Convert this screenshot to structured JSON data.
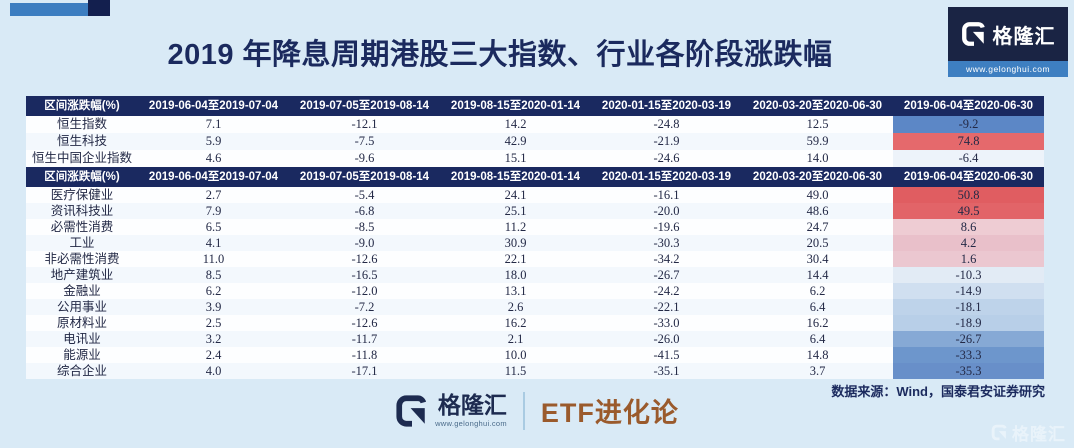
{
  "page": {
    "title": "2019 年降息周期港股三大指数、行业各阶段涨跌幅",
    "source_note": "数据来源：Wind，国泰君安证券研究"
  },
  "brand": {
    "name": "格隆汇",
    "url": "www.gelonghui.com",
    "footer_channel": "ETF进化论",
    "watermark": "格隆汇"
  },
  "colors": {
    "page_bg": "#d9eaf6",
    "header_navy": "#1a2960",
    "logo_navy": "#1a2444",
    "logo_strip_blue": "#3e7fc1",
    "title_navy": "#1b2a5e",
    "channel_brown": "#9a5a2c",
    "strong_gain_red": "#e05d61",
    "strong_loss_blue": "#5c87c6"
  },
  "chart_data": [
    {
      "type": "table",
      "name": "indices",
      "columns": [
        "区间涨跌幅(%)",
        "2019-06-04至2019-07-04",
        "2019-07-05至2019-08-14",
        "2019-08-15至2020-01-14",
        "2020-01-15至2020-03-19",
        "2020-03-20至2020-06-30",
        "2019-06-04至2020-06-30"
      ],
      "rows": [
        {
          "label": "恒生指数",
          "values": [
            "7.1",
            "-12.1",
            "14.2",
            "-24.8",
            "12.5",
            "-9.2"
          ],
          "total_bg": "#5c87c6"
        },
        {
          "label": "恒生科技",
          "values": [
            "5.9",
            "-7.5",
            "42.9",
            "-21.9",
            "59.9",
            "74.8"
          ],
          "total_bg": "#e5696c"
        },
        {
          "label": "恒生中国企业指数",
          "values": [
            "4.6",
            "-9.6",
            "15.1",
            "-24.6",
            "14.0",
            "-6.4"
          ],
          "total_bg": "#edf3fa"
        }
      ]
    },
    {
      "type": "table",
      "name": "sectors",
      "columns": [
        "区间涨跌幅(%)",
        "2019-06-04至2019-07-04",
        "2019-07-05至2019-08-14",
        "2019-08-15至2020-01-14",
        "2020-01-15至2020-03-19",
        "2020-03-20至2020-06-30",
        "2019-06-04至2020-06-30"
      ],
      "rows": [
        {
          "label": "医疗保健业",
          "values": [
            "2.7",
            "-5.4",
            "24.1",
            "-16.1",
            "49.0",
            "50.8"
          ],
          "total_bg": "#e05d61"
        },
        {
          "label": "资讯科技业",
          "values": [
            "7.9",
            "-6.8",
            "25.1",
            "-20.0",
            "48.6",
            "49.5"
          ],
          "total_bg": "#e26468"
        },
        {
          "label": "必需性消费",
          "values": [
            "6.5",
            "-8.5",
            "11.2",
            "-19.6",
            "24.7",
            "8.6"
          ],
          "total_bg": "#eeccd3"
        },
        {
          "label": "工业",
          "values": [
            "4.1",
            "-9.0",
            "30.9",
            "-30.3",
            "20.5",
            "4.2"
          ],
          "total_bg": "#e9c0ca"
        },
        {
          "label": "非必需性消费",
          "values": [
            "11.0",
            "-12.6",
            "22.1",
            "-34.2",
            "30.4",
            "1.6"
          ],
          "total_bg": "#ebc7d0"
        },
        {
          "label": "地产建筑业",
          "values": [
            "8.5",
            "-16.5",
            "18.0",
            "-26.7",
            "14.4",
            "-10.3"
          ],
          "total_bg": "#e2ebf5"
        },
        {
          "label": "金融业",
          "values": [
            "6.2",
            "-12.0",
            "13.1",
            "-24.2",
            "6.2",
            "-14.9"
          ],
          "total_bg": "#d0dff0"
        },
        {
          "label": "公用事业",
          "values": [
            "3.9",
            "-7.2",
            "2.6",
            "-22.1",
            "6.4",
            "-18.1"
          ],
          "total_bg": "#bed3ea"
        },
        {
          "label": "原材料业",
          "values": [
            "2.5",
            "-12.6",
            "16.2",
            "-33.0",
            "16.2",
            "-18.9"
          ],
          "total_bg": "#b8cfe8"
        },
        {
          "label": "电讯业",
          "values": [
            "3.2",
            "-11.7",
            "2.1",
            "-26.0",
            "6.4",
            "-26.7"
          ],
          "total_bg": "#86a9d5"
        },
        {
          "label": "能源业",
          "values": [
            "2.4",
            "-11.8",
            "10.0",
            "-41.5",
            "14.8",
            "-33.3"
          ],
          "total_bg": "#6d96cc"
        },
        {
          "label": "综合企业",
          "values": [
            "4.0",
            "-17.1",
            "11.5",
            "-35.1",
            "3.7",
            "-35.3"
          ],
          "total_bg": "#688fc9"
        }
      ]
    }
  ]
}
